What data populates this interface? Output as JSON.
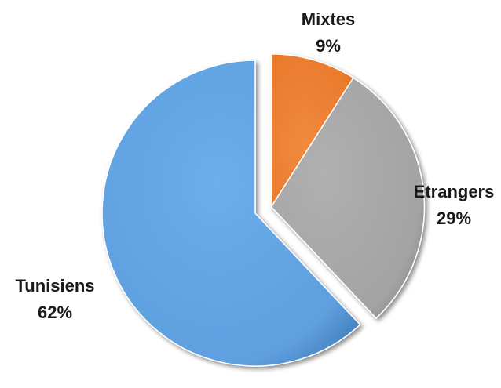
{
  "chart_data": {
    "type": "pie",
    "title": "",
    "slices": [
      {
        "label": "Tunisiens",
        "value": 62,
        "display": "62%",
        "color": "#62A3E2",
        "exploded": false
      },
      {
        "label": "Mixtes",
        "value": 9,
        "display": "9%",
        "color": "#ED7D31",
        "exploded": true
      },
      {
        "label": "Etrangers",
        "value": 29,
        "display": "29%",
        "color": "#A5A5A5",
        "exploded": true
      }
    ],
    "legend": "none",
    "data_labels": "outside"
  }
}
